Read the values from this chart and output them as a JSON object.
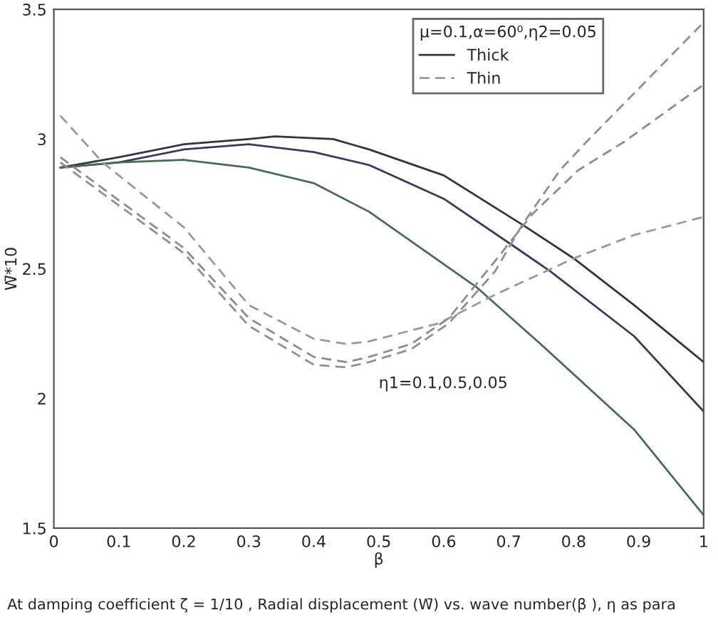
{
  "chart_data": {
    "type": "line",
    "xlabel": "β",
    "ylabel": "W̄*10",
    "legend_title": "μ=0.1,α=60⁰,η2=0.05",
    "legend": "top right",
    "grid": false,
    "xlim": [
      0,
      1
    ],
    "xticks": [
      0,
      0.1,
      0.2,
      0.3,
      0.4,
      0.5,
      0.6,
      0.7,
      0.8,
      0.9,
      1
    ],
    "ylim": [
      1.5,
      3.5
    ],
    "yticks": [
      1.5,
      2,
      2.5,
      3,
      3.5
    ],
    "annotations": [
      "η1=0.1,0.5,0.05",
      "At damping coefficient ζ = 1/10 , Radial displacement (W̄) vs. wave number(β ), η as para"
    ],
    "series": [
      {
        "name": "Thick",
        "color": "#333344",
        "line_style": "solid",
        "x": [
          0.01,
          0.1,
          0.2,
          0.3,
          0.34,
          0.43,
          0.485,
          0.6,
          0.721,
          0.8,
          0.893,
          1
        ],
        "values": [
          2.89,
          2.93,
          2.98,
          3.0,
          3.01,
          3.0,
          2.96,
          2.86,
          2.67,
          2.54,
          2.36,
          2.14
        ]
      },
      {
        "color": "#3a3a5a",
        "line_style": "solid",
        "x": [
          0.01,
          0.1,
          0.2,
          0.3,
          0.4,
          0.485,
          0.6,
          0.706,
          0.764,
          0.893,
          1
        ],
        "values": [
          2.89,
          2.91,
          2.96,
          2.98,
          2.95,
          2.9,
          2.77,
          2.59,
          2.49,
          2.24,
          1.95
        ]
      },
      {
        "color": "#4a6a55",
        "line_style": "solid",
        "x": [
          0.01,
          0.1,
          0.2,
          0.3,
          0.4,
          0.485,
          0.65,
          0.749,
          0.893,
          1
        ],
        "values": [
          2.89,
          2.91,
          2.92,
          2.89,
          2.83,
          2.72,
          2.43,
          2.21,
          1.88,
          1.55
        ]
      },
      {
        "name": "Thin",
        "color": "#999999",
        "line_style": "dashed",
        "x": [
          0.01,
          0.075,
          0.2,
          0.3,
          0.4,
          0.45,
          0.485,
          0.593,
          0.679,
          0.8,
          0.893,
          1
        ],
        "values": [
          3.09,
          2.91,
          2.66,
          2.36,
          2.23,
          2.21,
          2.22,
          2.29,
          2.4,
          2.54,
          2.63,
          2.7
        ]
      },
      {
        "color": "#8a8a9a",
        "line_style": "dashed",
        "x": [
          0.01,
          0.2,
          0.3,
          0.4,
          0.45,
          0.485,
          0.55,
          0.608,
          0.679,
          0.736,
          0.807,
          0.878,
          1
        ],
        "values": [
          2.93,
          2.58,
          2.31,
          2.16,
          2.14,
          2.16,
          2.21,
          2.31,
          2.53,
          2.71,
          2.88,
          2.99,
          3.21
        ]
      },
      {
        "color": "#9a8a8a",
        "line_style": "dashed",
        "x": [
          0.01,
          0.2,
          0.3,
          0.4,
          0.45,
          0.485,
          0.55,
          0.608,
          0.679,
          0.721,
          0.779,
          0.82,
          1
        ],
        "values": [
          2.91,
          2.56,
          2.28,
          2.13,
          2.12,
          2.14,
          2.19,
          2.29,
          2.49,
          2.67,
          2.88,
          2.99,
          3.45
        ]
      }
    ]
  }
}
